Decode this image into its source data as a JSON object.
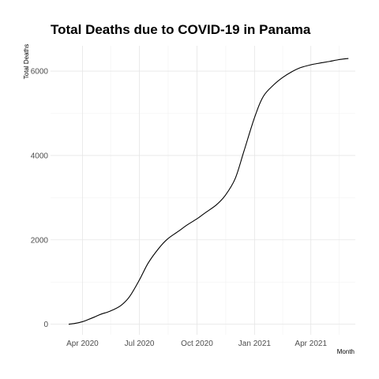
{
  "chart_data": {
    "type": "line",
    "title": "Total Deaths due to COVID-19 in Panama",
    "xlabel": "Month",
    "ylabel": "Total Deaths",
    "grid": true,
    "ylim": [
      -250,
      6600
    ],
    "xlim": [
      "2020-02-10",
      "2021-06-11"
    ],
    "x_ticks": [
      {
        "date": "2020-04-01",
        "label": "Apr 2020"
      },
      {
        "date": "2020-07-01",
        "label": "Jul 2020"
      },
      {
        "date": "2020-10-01",
        "label": "Oct 2020"
      },
      {
        "date": "2021-01-01",
        "label": "Jan 2021"
      },
      {
        "date": "2021-04-01",
        "label": "Apr 2021"
      }
    ],
    "x_minor_ticks": [
      "2020-05-16",
      "2020-08-16",
      "2020-11-16",
      "2021-02-15",
      "2021-05-16"
    ],
    "y_ticks": [
      {
        "value": 0,
        "label": "0"
      },
      {
        "value": 2000,
        "label": "2000"
      },
      {
        "value": 4000,
        "label": "4000"
      },
      {
        "value": 6000,
        "label": "6000"
      }
    ],
    "y_minor_ticks": [
      1000,
      3000,
      5000
    ],
    "series": [
      {
        "color": "#000000",
        "x": [
          "2020-03-10",
          "2020-03-20",
          "2020-04-01",
          "2020-04-10",
          "2020-04-20",
          "2020-05-01",
          "2020-05-15",
          "2020-06-01",
          "2020-06-15",
          "2020-07-01",
          "2020-07-15",
          "2020-08-01",
          "2020-08-15",
          "2020-09-01",
          "2020-09-15",
          "2020-10-01",
          "2020-10-15",
          "2020-11-01",
          "2020-11-15",
          "2020-12-01",
          "2020-12-15",
          "2021-01-01",
          "2021-01-15",
          "2021-02-01",
          "2021-02-15",
          "2021-03-01",
          "2021-03-15",
          "2021-04-01",
          "2021-04-15",
          "2021-05-01",
          "2021-05-15",
          "2021-05-31"
        ],
        "values": [
          0,
          20,
          60,
          110,
          170,
          240,
          310,
          440,
          650,
          1050,
          1450,
          1800,
          2020,
          2200,
          2350,
          2500,
          2650,
          2830,
          3050,
          3450,
          4100,
          4900,
          5400,
          5680,
          5850,
          5980,
          6080,
          6150,
          6190,
          6230,
          6270,
          6300
        ]
      }
    ]
  }
}
